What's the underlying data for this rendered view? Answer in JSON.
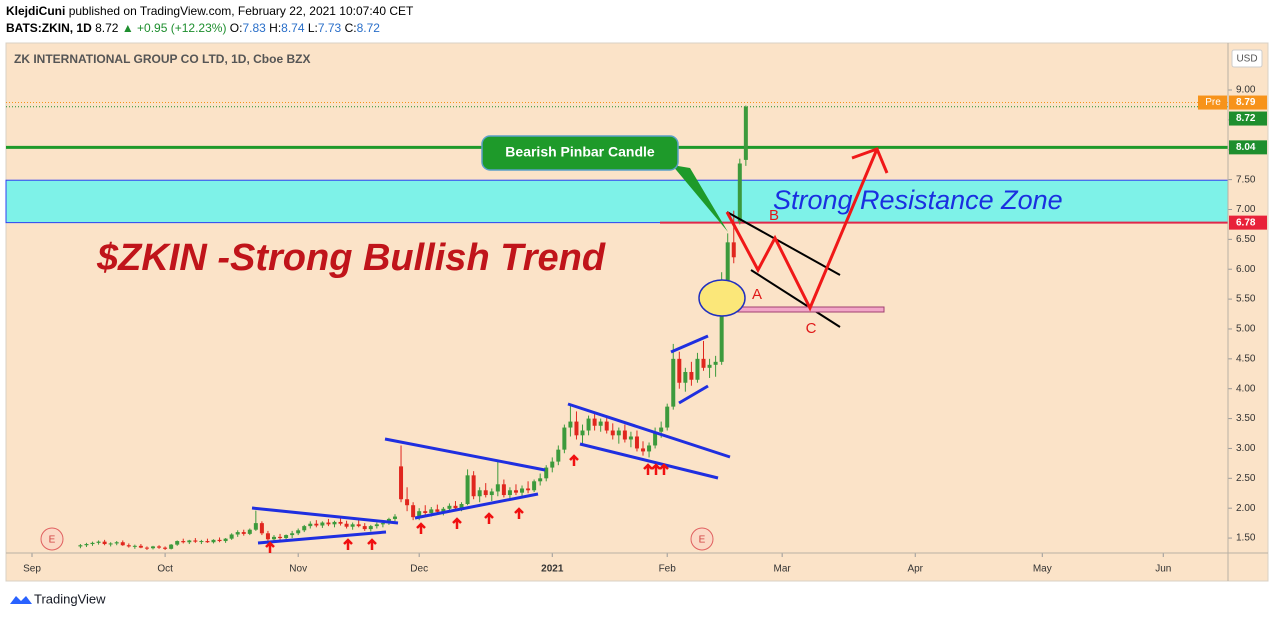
{
  "header": {
    "author": "KlejdiCuni",
    "published": "published on TradingView.com, February 22, 2021 10:07:40 CET",
    "symbol": "BATS:ZKIN, 1D",
    "last": "8.72",
    "change": "▲ +0.95 (+12.23%)",
    "o_label": "O:",
    "o": "7.83",
    "h_label": "H:",
    "h": "8.74",
    "l_label": "L:",
    "l": "7.73",
    "c_label": "C:",
    "c": "8.72"
  },
  "chart_data": {
    "type": "candlestick",
    "title": "ZK INTERNATIONAL GROUP CO LTD, 1D, Cboe BZX",
    "currency": "USD",
    "up_color": "#3c9a3c",
    "down_color": "#e0261e",
    "xlim": [
      -4.3,
      197.7
    ],
    "xticks": [
      {
        "value": 0,
        "label": "Sep"
      },
      {
        "value": 22,
        "label": "Oct"
      },
      {
        "value": 44,
        "label": "Nov"
      },
      {
        "value": 64,
        "label": "Dec"
      },
      {
        "value": 86,
        "label": "2021"
      },
      {
        "value": 105,
        "label": "Feb"
      },
      {
        "value": 124,
        "label": "Mar"
      },
      {
        "value": 146,
        "label": "Apr"
      },
      {
        "value": 167,
        "label": "May"
      },
      {
        "value": 187,
        "label": "Jun"
      }
    ],
    "ylim": [
      1.25,
      9.77
    ],
    "yticks": [
      {
        "value": 1.5,
        "label": "1.50"
      },
      {
        "value": 2,
        "label": "2.00"
      },
      {
        "value": 2.5,
        "label": "2.50"
      },
      {
        "value": 3,
        "label": "3.00"
      },
      {
        "value": 3.5,
        "label": "3.50"
      },
      {
        "value": 4,
        "label": "4.00"
      },
      {
        "value": 4.5,
        "label": "4.50"
      },
      {
        "value": 5,
        "label": "5.00"
      },
      {
        "value": 5.5,
        "label": "5.50"
      },
      {
        "value": 6,
        "label": "6.00"
      },
      {
        "value": 6.5,
        "label": "6.50"
      },
      {
        "value": 7,
        "label": "7.00"
      },
      {
        "value": 7.5,
        "label": "7.50"
      },
      {
        "value": 8,
        "label": "8.00"
      },
      {
        "value": 8.5,
        "label": "8.50"
      },
      {
        "value": 9,
        "label": "9.00"
      }
    ],
    "x": [
      8,
      9,
      10,
      11,
      12,
      13,
      14,
      15,
      16,
      17,
      18,
      19,
      20,
      21,
      22,
      23,
      24,
      25,
      26,
      27,
      28,
      29,
      30,
      31,
      32,
      33,
      34,
      35,
      36,
      37,
      38,
      39,
      40,
      41,
      42,
      43,
      44,
      45,
      46,
      47,
      48,
      49,
      50,
      51,
      52,
      53,
      54,
      55,
      56,
      57,
      58,
      59,
      60,
      61,
      62,
      63,
      64,
      65,
      66,
      67,
      68,
      69,
      70,
      71,
      72,
      73,
      74,
      75,
      76,
      77,
      78,
      79,
      80,
      81,
      82,
      83,
      84,
      85,
      86,
      87,
      88,
      89,
      90,
      91,
      92,
      93,
      94,
      95,
      96,
      97,
      98,
      99,
      100,
      101,
      102,
      103,
      104,
      105,
      106,
      107,
      108,
      109,
      110,
      111,
      112,
      113,
      114,
      115,
      116,
      117,
      118
    ],
    "ohlc": [
      [
        1.36,
        1.4,
        1.33,
        1.38
      ],
      [
        1.38,
        1.42,
        1.35,
        1.4
      ],
      [
        1.4,
        1.44,
        1.37,
        1.42
      ],
      [
        1.42,
        1.46,
        1.39,
        1.44
      ],
      [
        1.44,
        1.47,
        1.38,
        1.4
      ],
      [
        1.4,
        1.43,
        1.36,
        1.41
      ],
      [
        1.41,
        1.45,
        1.38,
        1.43
      ],
      [
        1.43,
        1.46,
        1.37,
        1.38
      ],
      [
        1.38,
        1.41,
        1.34,
        1.36
      ],
      [
        1.36,
        1.39,
        1.32,
        1.37
      ],
      [
        1.37,
        1.4,
        1.33,
        1.34
      ],
      [
        1.34,
        1.36,
        1.3,
        1.33
      ],
      [
        1.33,
        1.37,
        1.31,
        1.36
      ],
      [
        1.36,
        1.38,
        1.32,
        1.34
      ],
      [
        1.34,
        1.36,
        1.3,
        1.32
      ],
      [
        1.32,
        1.4,
        1.31,
        1.39
      ],
      [
        1.39,
        1.46,
        1.37,
        1.45
      ],
      [
        1.45,
        1.49,
        1.41,
        1.43
      ],
      [
        1.43,
        1.47,
        1.4,
        1.46
      ],
      [
        1.46,
        1.5,
        1.42,
        1.44
      ],
      [
        1.44,
        1.47,
        1.4,
        1.45
      ],
      [
        1.45,
        1.49,
        1.42,
        1.43
      ],
      [
        1.43,
        1.48,
        1.41,
        1.47
      ],
      [
        1.47,
        1.51,
        1.43,
        1.45
      ],
      [
        1.45,
        1.5,
        1.42,
        1.49
      ],
      [
        1.49,
        1.58,
        1.47,
        1.56
      ],
      [
        1.56,
        1.63,
        1.52,
        1.6
      ],
      [
        1.6,
        1.64,
        1.54,
        1.57
      ],
      [
        1.57,
        1.66,
        1.55,
        1.64
      ],
      [
        1.64,
        1.96,
        1.62,
        1.75
      ],
      [
        1.75,
        1.78,
        1.55,
        1.58
      ],
      [
        1.58,
        1.62,
        1.45,
        1.48
      ],
      [
        1.48,
        1.55,
        1.43,
        1.52
      ],
      [
        1.52,
        1.57,
        1.46,
        1.5
      ],
      [
        1.5,
        1.56,
        1.47,
        1.55
      ],
      [
        1.55,
        1.62,
        1.5,
        1.58
      ],
      [
        1.58,
        1.66,
        1.55,
        1.63
      ],
      [
        1.63,
        1.72,
        1.6,
        1.7
      ],
      [
        1.7,
        1.78,
        1.66,
        1.74
      ],
      [
        1.74,
        1.8,
        1.68,
        1.71
      ],
      [
        1.71,
        1.78,
        1.67,
        1.76
      ],
      [
        1.76,
        1.82,
        1.7,
        1.73
      ],
      [
        1.73,
        1.79,
        1.68,
        1.77
      ],
      [
        1.77,
        1.83,
        1.71,
        1.74
      ],
      [
        1.74,
        1.79,
        1.66,
        1.69
      ],
      [
        1.69,
        1.76,
        1.64,
        1.73
      ],
      [
        1.73,
        1.8,
        1.68,
        1.7
      ],
      [
        1.7,
        1.75,
        1.62,
        1.65
      ],
      [
        1.65,
        1.72,
        1.61,
        1.7
      ],
      [
        1.7,
        1.76,
        1.66,
        1.73
      ],
      [
        1.73,
        1.78,
        1.68,
        1.75
      ],
      [
        1.75,
        1.84,
        1.72,
        1.82
      ],
      [
        1.82,
        1.9,
        1.78,
        1.86
      ],
      [
        2.7,
        3.05,
        2.1,
        2.15
      ],
      [
        2.15,
        2.35,
        1.95,
        2.05
      ],
      [
        2.05,
        2.1,
        1.8,
        1.85
      ],
      [
        1.85,
        2.0,
        1.8,
        1.95
      ],
      [
        1.95,
        2.05,
        1.88,
        1.92
      ],
      [
        1.92,
        2.02,
        1.86,
        1.98
      ],
      [
        1.98,
        2.06,
        1.9,
        1.94
      ],
      [
        1.94,
        2.02,
        1.88,
        1.99
      ],
      [
        1.99,
        2.08,
        1.94,
        2.04
      ],
      [
        2.04,
        2.12,
        1.98,
        2.0
      ],
      [
        2.0,
        2.1,
        1.95,
        2.07
      ],
      [
        2.07,
        2.65,
        2.05,
        2.55
      ],
      [
        2.55,
        2.62,
        2.15,
        2.2
      ],
      [
        2.2,
        2.35,
        2.1,
        2.3
      ],
      [
        2.3,
        2.42,
        2.18,
        2.22
      ],
      [
        2.22,
        2.33,
        2.12,
        2.28
      ],
      [
        2.28,
        2.78,
        2.2,
        2.4
      ],
      [
        2.4,
        2.48,
        2.18,
        2.22
      ],
      [
        2.22,
        2.35,
        2.15,
        2.3
      ],
      [
        2.3,
        2.4,
        2.22,
        2.26
      ],
      [
        2.26,
        2.38,
        2.2,
        2.33
      ],
      [
        2.33,
        2.45,
        2.25,
        2.3
      ],
      [
        2.3,
        2.48,
        2.27,
        2.45
      ],
      [
        2.45,
        2.58,
        2.38,
        2.5
      ],
      [
        2.5,
        2.72,
        2.45,
        2.68
      ],
      [
        2.68,
        2.85,
        2.6,
        2.78
      ],
      [
        2.78,
        3.05,
        2.72,
        2.98
      ],
      [
        2.98,
        3.4,
        2.92,
        3.35
      ],
      [
        3.35,
        3.72,
        3.2,
        3.45
      ],
      [
        3.45,
        3.62,
        3.15,
        3.22
      ],
      [
        3.22,
        3.4,
        3.05,
        3.3
      ],
      [
        3.3,
        3.55,
        3.22,
        3.5
      ],
      [
        3.5,
        3.58,
        3.3,
        3.38
      ],
      [
        3.38,
        3.5,
        3.28,
        3.45
      ],
      [
        3.45,
        3.52,
        3.25,
        3.3
      ],
      [
        3.3,
        3.42,
        3.15,
        3.22
      ],
      [
        3.22,
        3.35,
        3.08,
        3.3
      ],
      [
        3.3,
        3.4,
        3.1,
        3.15
      ],
      [
        3.15,
        3.28,
        3.02,
        3.2
      ],
      [
        3.2,
        3.3,
        2.95,
        3.0
      ],
      [
        3.0,
        3.12,
        2.88,
        2.95
      ],
      [
        2.95,
        3.1,
        2.85,
        3.05
      ],
      [
        3.05,
        3.35,
        3.0,
        3.28
      ],
      [
        3.28,
        3.45,
        3.18,
        3.35
      ],
      [
        3.35,
        3.75,
        3.3,
        3.7
      ],
      [
        3.7,
        4.75,
        3.65,
        4.5
      ],
      [
        4.5,
        4.62,
        4.0,
        4.1
      ],
      [
        4.1,
        4.35,
        3.95,
        4.28
      ],
      [
        4.28,
        4.45,
        4.05,
        4.15
      ],
      [
        4.15,
        4.6,
        4.1,
        4.5
      ],
      [
        4.5,
        4.8,
        4.3,
        4.35
      ],
      [
        4.35,
        4.5,
        4.18,
        4.4
      ],
      [
        4.4,
        4.55,
        4.2,
        4.45
      ],
      [
        4.45,
        5.95,
        4.4,
        5.8
      ],
      [
        5.8,
        6.6,
        5.55,
        6.45
      ],
      [
        6.45,
        6.98,
        6.1,
        6.2
      ],
      [
        6.8,
        7.85,
        6.75,
        7.77
      ],
      [
        7.83,
        8.74,
        7.73,
        8.72
      ]
    ],
    "price_labels": [
      {
        "value": 8.79,
        "tag": "Pre",
        "color": "#f7931a"
      },
      {
        "value": 8.72,
        "color": "#1e8e2e"
      },
      {
        "value": 8.04,
        "color": "#1e8e2e"
      },
      {
        "value": 6.78,
        "color": "#e8213a"
      }
    ],
    "support_line": {
      "value": 8.04,
      "color": "#1e9a2a"
    },
    "red_line": {
      "value": 6.78,
      "color": "#e0284a"
    },
    "resistance_zone": {
      "low": 6.78,
      "high": 7.49,
      "label": "Strong Resistance Zone",
      "color": "#7ef2e8"
    },
    "headline": "$ZKIN -Strong Bullish Trend",
    "callout": "Bearish Pinbar Candle",
    "wave_labels": [
      "A",
      "B",
      "C"
    ],
    "earnings_markers": [
      "E",
      "E"
    ]
  },
  "footer": {
    "brand": "TradingView"
  }
}
